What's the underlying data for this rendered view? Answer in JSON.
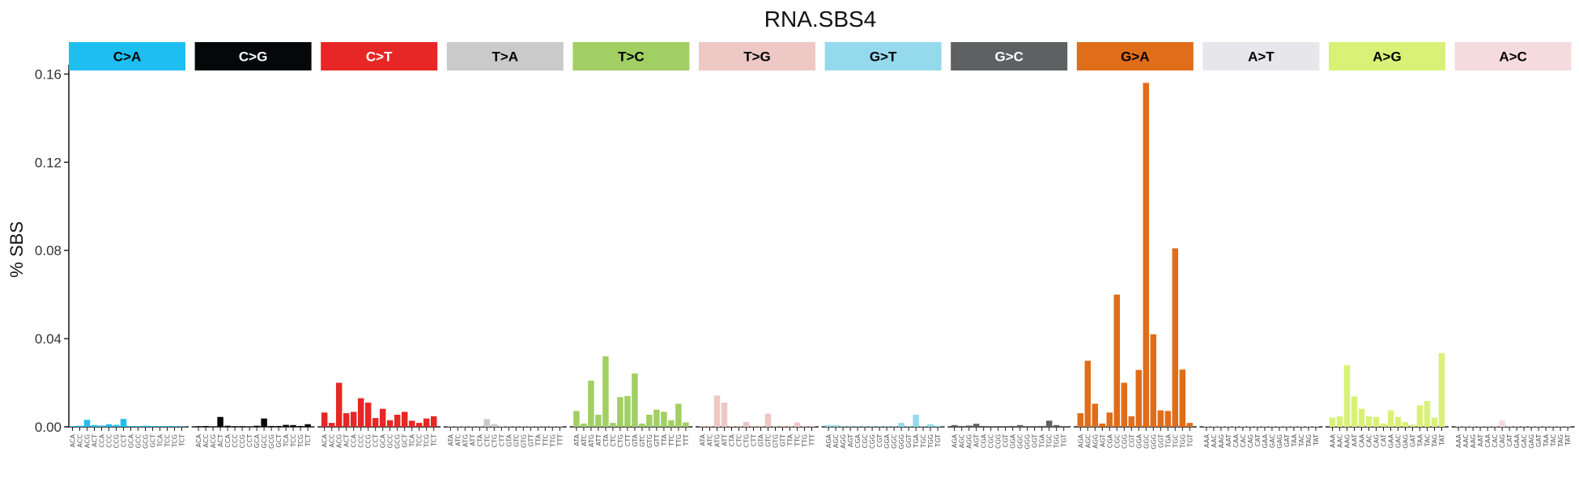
{
  "chart_data": {
    "type": "bar",
    "title": "RNA.SBS4",
    "xlabel": "",
    "ylabel": "% SBS",
    "ylim": [
      0,
      0.162
    ],
    "yticks": [
      "0.00",
      "0.04",
      "0.08",
      "0.12",
      "0.16"
    ],
    "ytick_values": [
      0,
      0.04,
      0.08,
      0.12,
      0.16
    ],
    "grid": false,
    "legend": "none",
    "panels": [
      {
        "label": "C>A",
        "color": "#1EBFF0",
        "text_color": "#000000",
        "categories": [
          "ACA",
          "ACC",
          "ACG",
          "ACT",
          "CCA",
          "CCC",
          "CCG",
          "CCT",
          "GCA",
          "GCC",
          "GCG",
          "GCT",
          "TCA",
          "TCC",
          "TCG",
          "TCT"
        ],
        "values": [
          0.0003,
          0.0005,
          0.0032,
          0.0008,
          0.0006,
          0.0012,
          0.0009,
          0.0036,
          0.0004,
          0.0003,
          0.0005,
          0.0004,
          0.0003,
          0.0004,
          0.0003,
          0.0003
        ]
      },
      {
        "label": "C>G",
        "color": "#050708",
        "text_color": "#ffffff",
        "categories": [
          "ACA",
          "ACC",
          "ACG",
          "ACT",
          "CCA",
          "CCC",
          "CCG",
          "CCT",
          "GCA",
          "GCC",
          "GCG",
          "GCT",
          "TCA",
          "TCC",
          "TCG",
          "TCT"
        ],
        "values": [
          0.0003,
          0.0004,
          0.0002,
          0.0045,
          0.0005,
          0.0003,
          0.0003,
          0.0002,
          0.0005,
          0.0038,
          0.0004,
          0.0004,
          0.0009,
          0.0008,
          0.0004,
          0.0012
        ]
      },
      {
        "label": "C>T",
        "color": "#E62725",
        "text_color": "#ffffff",
        "categories": [
          "ACA",
          "ACC",
          "ACG",
          "ACT",
          "CCA",
          "CCC",
          "CCG",
          "CCT",
          "GCA",
          "GCC",
          "GCG",
          "GCT",
          "TCA",
          "TCC",
          "TCG",
          "TCT"
        ],
        "values": [
          0.0065,
          0.0018,
          0.02,
          0.0062,
          0.0068,
          0.013,
          0.011,
          0.004,
          0.0082,
          0.003,
          0.0055,
          0.0068,
          0.0028,
          0.0018,
          0.0038,
          0.0048
        ]
      },
      {
        "label": "T>A",
        "color": "#CBCACB",
        "text_color": "#000000",
        "categories": [
          "ATA",
          "ATC",
          "ATG",
          "ATT",
          "CTA",
          "CTC",
          "CTG",
          "CTT",
          "GTA",
          "GTC",
          "GTG",
          "GTT",
          "TTA",
          "TTC",
          "TTG",
          "TTT"
        ],
        "values": [
          0.0003,
          0.0003,
          0.0003,
          0.0003,
          0.0003,
          0.0035,
          0.0012,
          0.0004,
          0.0003,
          0.0003,
          0.0003,
          0.0003,
          0.0003,
          0.0003,
          0.0003,
          0.0003
        ]
      },
      {
        "label": "T>C",
        "color": "#A1CF64",
        "text_color": "#000000",
        "categories": [
          "ATA",
          "ATC",
          "ATG",
          "ATT",
          "CTA",
          "CTC",
          "CTG",
          "CTT",
          "GTA",
          "GTC",
          "GTG",
          "GTT",
          "TTA",
          "TTC",
          "TTG",
          "TTT"
        ],
        "values": [
          0.0072,
          0.0015,
          0.021,
          0.0055,
          0.032,
          0.0018,
          0.0135,
          0.014,
          0.0242,
          0.0015,
          0.0055,
          0.0078,
          0.0068,
          0.003,
          0.0105,
          0.002
        ]
      },
      {
        "label": "T>G",
        "color": "#EDC8C5",
        "text_color": "#000000",
        "categories": [
          "ATA",
          "ATC",
          "ATG",
          "ATT",
          "CTA",
          "CTC",
          "CTG",
          "CTT",
          "GTA",
          "GTC",
          "GTG",
          "GTT",
          "TTA",
          "TTC",
          "TTG",
          "TTT"
        ],
        "values": [
          0.0003,
          0.0003,
          0.0142,
          0.011,
          0.0003,
          0.0003,
          0.0022,
          0.0003,
          0.0003,
          0.006,
          0.0003,
          0.0003,
          0.0003,
          0.002,
          0.0003,
          0.0003
        ]
      },
      {
        "label": "G>T",
        "color": "#95D9EC",
        "text_color": "#000000",
        "categories": [
          "AGA",
          "AGC",
          "AGG",
          "AGT",
          "CGA",
          "CGC",
          "CGG",
          "CGT",
          "GGA",
          "GGC",
          "GGG",
          "GGT",
          "TGA",
          "TGC",
          "TGG",
          "TGT"
        ],
        "values": [
          0.0008,
          0.0008,
          0.0003,
          0.0003,
          0.0003,
          0.0003,
          0.0003,
          0.0003,
          0.0003,
          0.0003,
          0.0018,
          0.0003,
          0.0055,
          0.0003,
          0.0012,
          0.0005
        ]
      },
      {
        "label": "G>C",
        "color": "#5E6062",
        "text_color": "#ffffff",
        "categories": [
          "AGA",
          "AGC",
          "AGG",
          "AGT",
          "CGA",
          "CGC",
          "CGG",
          "CGT",
          "GGA",
          "GGC",
          "GGG",
          "GGT",
          "TGA",
          "TGC",
          "TGG",
          "TGT"
        ],
        "values": [
          0.0008,
          0.0004,
          0.0006,
          0.0014,
          0.0004,
          0.0003,
          0.0003,
          0.0003,
          0.0004,
          0.0008,
          0.0003,
          0.0003,
          0.0004,
          0.0028,
          0.0008,
          0.0003
        ]
      },
      {
        "label": "G>A",
        "color": "#E06D19",
        "text_color": "#000000",
        "categories": [
          "AGA",
          "AGC",
          "AGG",
          "AGT",
          "CGA",
          "CGC",
          "CGG",
          "CGT",
          "GGA",
          "GGC",
          "GGG",
          "GGT",
          "TGA",
          "TGC",
          "TGG",
          "TGT"
        ],
        "values": [
          0.0062,
          0.03,
          0.0105,
          0.0015,
          0.0065,
          0.06,
          0.02,
          0.0048,
          0.0258,
          0.156,
          0.042,
          0.0075,
          0.0072,
          0.081,
          0.026,
          0.0018
        ]
      },
      {
        "label": "A>T",
        "color": "#E7E6EA",
        "text_color": "#000000",
        "categories": [
          "AAA",
          "AAC",
          "AAG",
          "AAT",
          "CAA",
          "CAC",
          "CAG",
          "CAT",
          "GAA",
          "GAC",
          "GAG",
          "GAT",
          "TAA",
          "TAC",
          "TAG",
          "TAT"
        ],
        "values": [
          0.0003,
          0.0003,
          0.0003,
          0.0003,
          0.0003,
          0.0003,
          0.0003,
          0.0003,
          0.0003,
          0.0003,
          0.0003,
          0.0003,
          0.0003,
          0.0003,
          0.0003,
          0.0003
        ]
      },
      {
        "label": "A>G",
        "color": "#D9F177",
        "text_color": "#000000",
        "categories": [
          "AAA",
          "AAC",
          "AAG",
          "AAT",
          "CAA",
          "CAC",
          "CAG",
          "CAT",
          "GAA",
          "GAC",
          "GAG",
          "GAT",
          "TAA",
          "TAC",
          "TAG",
          "TAT"
        ],
        "values": [
          0.0042,
          0.0048,
          0.028,
          0.0138,
          0.0082,
          0.0048,
          0.0045,
          0.0015,
          0.0075,
          0.0045,
          0.0022,
          0.001,
          0.0098,
          0.0118,
          0.0042,
          0.0335
        ]
      },
      {
        "label": "A>C",
        "color": "#F6DBDE",
        "text_color": "#000000",
        "categories": [
          "AAA",
          "AAC",
          "AAG",
          "AAT",
          "CAA",
          "CAC",
          "CAG",
          "CAT",
          "GAA",
          "GAC",
          "GAG",
          "GAT",
          "TAA",
          "TAC",
          "TAG",
          "TAT"
        ],
        "values": [
          0.0003,
          0.0003,
          0.0003,
          0.0003,
          0.0003,
          0.0003,
          0.003,
          0.0003,
          0.0003,
          0.0003,
          0.0003,
          0.0003,
          0.0003,
          0.0003,
          0.0003,
          0.0003
        ]
      }
    ]
  }
}
